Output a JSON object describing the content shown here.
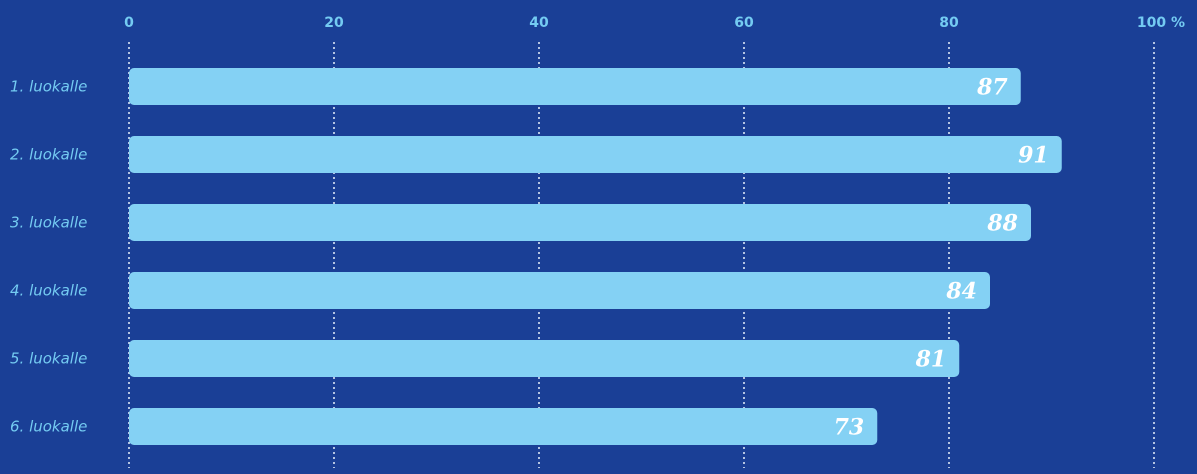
{
  "chart_data": {
    "type": "bar",
    "orientation": "horizontal",
    "categories": [
      "1. luokalle",
      "2. luokalle",
      "3. luokalle",
      "4. luokalle",
      "5. luokalle",
      "6. luokalle"
    ],
    "values": [
      87,
      91,
      88,
      84,
      81,
      73
    ],
    "value_labels": [
      "87",
      "91",
      "88",
      "84",
      "81",
      "73"
    ],
    "xlim": [
      0,
      100
    ],
    "x_ticks": [
      {
        "value": 0,
        "label": "0"
      },
      {
        "value": 20,
        "label": "20"
      },
      {
        "value": 40,
        "label": "40"
      },
      {
        "value": 60,
        "label": "60"
      },
      {
        "value": 80,
        "label": "80"
      },
      {
        "value": 100,
        "label": "100 %"
      }
    ],
    "axis_position": "top",
    "grid": "dotted vertical",
    "title": "",
    "xlabel": "",
    "ylabel": ""
  },
  "colors": {
    "background": "#1a3f96",
    "bar": "#84d1f4",
    "label": "#74cbf2",
    "value_text": "#ffffff",
    "grid": "#e8f1fb"
  }
}
